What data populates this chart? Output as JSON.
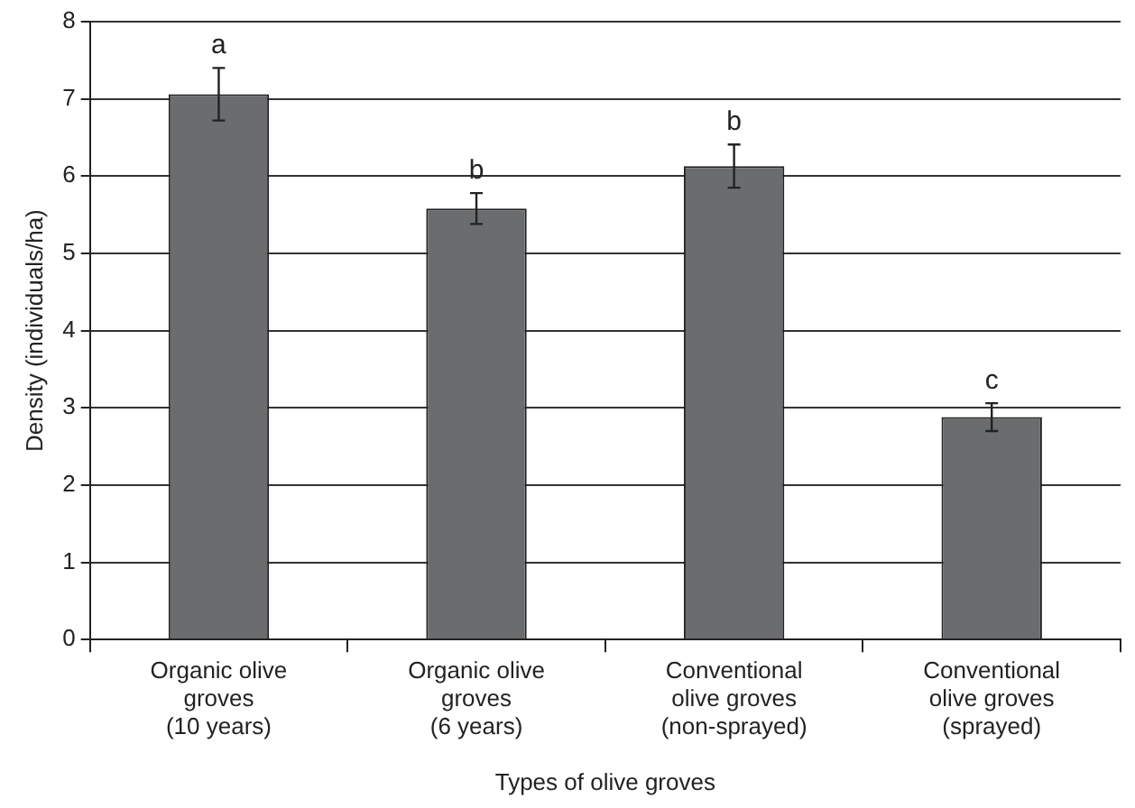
{
  "chart_data": {
    "type": "bar",
    "xlabel": "Types of olive groves",
    "ylabel": "Density (individuals/ha)",
    "categories": [
      "Organic olive\ngroves\n(10 years)",
      "Organic olive\ngroves\n(6 years)",
      "Conventional\nolive groves\n(non-sprayed)",
      "Conventional\nolive groves\n(sprayed)"
    ],
    "values": [
      7.06,
      5.58,
      6.13,
      2.88
    ],
    "errors": [
      0.34,
      0.2,
      0.28,
      0.18
    ],
    "color": "#6b6c6e",
    "ylim": [
      0,
      8
    ],
    "yticks": [
      0,
      1,
      2,
      3,
      4,
      5,
      6,
      7,
      8
    ],
    "grid": "y",
    "legend": false,
    "annotations": [
      "a",
      "b",
      "b",
      "c"
    ]
  }
}
